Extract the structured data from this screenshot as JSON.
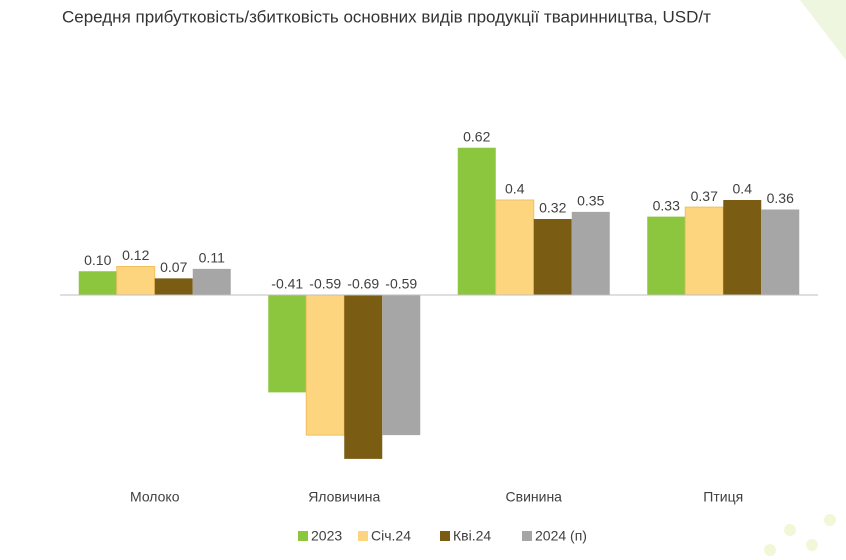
{
  "chart_data": {
    "type": "bar",
    "title": "Середня прибутковість/збитковість основних видів продукції тваринництва, USD/т",
    "categories": [
      "Молоко",
      "Яловичина",
      "Свинина",
      "Птиця"
    ],
    "series": [
      {
        "name": "2023",
        "color": "#8cc63f",
        "values": [
          0.1,
          -0.41,
          0.62,
          0.33
        ],
        "value_labels": [
          "0.10",
          "-0.41",
          "0.62",
          "0.33"
        ]
      },
      {
        "name": "Січ.24",
        "color": "#fdd57e",
        "values": [
          0.12,
          -0.59,
          0.4,
          0.37
        ],
        "value_labels": [
          "0.12",
          "-0.59",
          "0.4",
          "0.37"
        ]
      },
      {
        "name": "Кві.24",
        "color": "#7a5c12",
        "values": [
          0.07,
          -0.69,
          0.32,
          0.4
        ],
        "value_labels": [
          "0.07",
          "-0.69",
          "0.32",
          "0.4"
        ]
      },
      {
        "name": "2024 (п)",
        "color": "#a6a6a6",
        "values": [
          0.11,
          -0.59,
          0.35,
          0.36
        ],
        "value_labels": [
          "0.11",
          "-0.59",
          "0.35",
          "0.36"
        ]
      }
    ],
    "ylim": [
      -0.8,
      0.8
    ]
  }
}
